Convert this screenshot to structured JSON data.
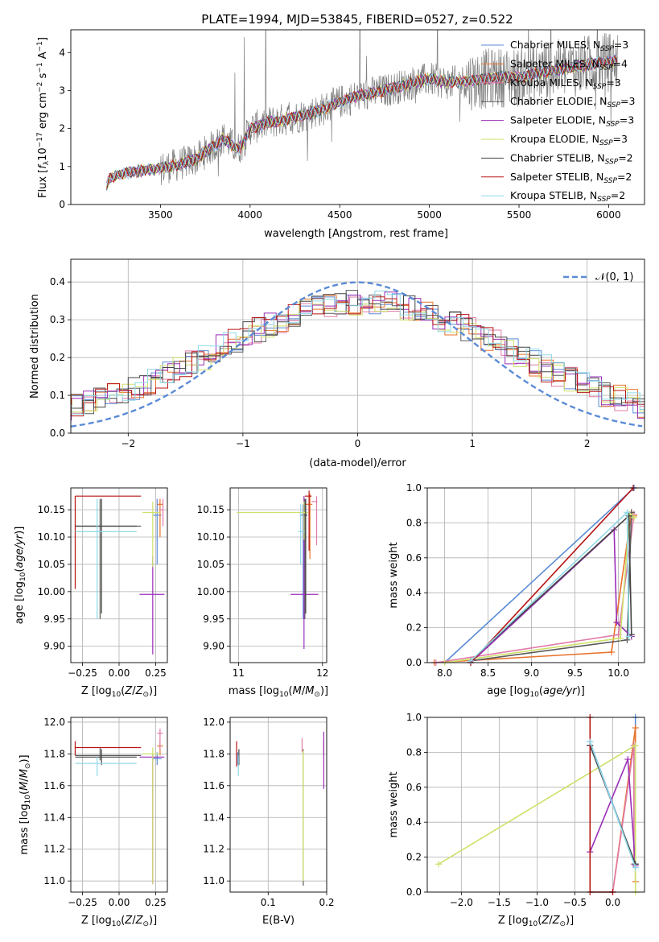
{
  "figure": {
    "title": "PLATE=1994, MJD=53845, FIBERID=0527, z=0.522"
  },
  "colors": {
    "Chabrier MILES": "#5b8bd6",
    "Salpeter MILES": "#e8722a",
    "Kroupa MILES": "#e07ba8",
    "Chabrier ELODIE": "#5a5a5a",
    "Salpeter ELODIE": "#9a2fb8",
    "Kroupa ELODIE": "#cfe06a",
    "Chabrier STELIB": "#444444",
    "Salpeter STELIB": "#b81414",
    "Kroupa STELIB": "#8fd8e8",
    "data": "#7f7f7f",
    "normal": "#5b8bd6"
  },
  "chart_data": [
    {
      "id": "spectrum",
      "type": "line",
      "title": "PLATE=1994, MJD=53845, FIBERID=0527, z=0.522",
      "xlabel": "wavelength [Angstrom, rest frame]",
      "ylabel": "Flux [f_λ 10^-17 erg cm^-2 s^-1 A^-1]",
      "xlim": [
        3000,
        6200
      ],
      "ylim": [
        0,
        4.6
      ],
      "xticks": [
        3500,
        4000,
        4500,
        5000,
        5500,
        6000
      ],
      "yticks": [
        0,
        1,
        2,
        3,
        4
      ],
      "grid": false,
      "legend_position": "top-right",
      "legend": [
        {
          "model": "Chabrier MILES",
          "n": "3"
        },
        {
          "model": "Salpeter MILES",
          "n": "4"
        },
        {
          "model": "Kroupa MILES",
          "n": "3"
        },
        {
          "model": "Chabrier ELODIE",
          "n": "3"
        },
        {
          "model": "Salpeter ELODIE",
          "n": "3"
        },
        {
          "model": "Kroupa ELODIE",
          "n": "3"
        },
        {
          "model": "Chabrier STELIB",
          "n": "2"
        },
        {
          "model": "Salpeter STELIB",
          "n": "2"
        },
        {
          "model": "Kroupa STELIB",
          "n": "2"
        }
      ],
      "continuum_points": [
        [
          3200,
          0.5
        ],
        [
          3220,
          0.7
        ],
        [
          3300,
          0.82
        ],
        [
          3400,
          0.9
        ],
        [
          3500,
          0.95
        ],
        [
          3600,
          1.05
        ],
        [
          3700,
          1.2
        ],
        [
          3800,
          1.55
        ],
        [
          3850,
          1.75
        ],
        [
          3930,
          1.45
        ],
        [
          3960,
          1.6
        ],
        [
          4000,
          2.0
        ],
        [
          4100,
          2.15
        ],
        [
          4200,
          2.25
        ],
        [
          4300,
          2.35
        ],
        [
          4400,
          2.5
        ],
        [
          4500,
          2.7
        ],
        [
          4600,
          2.85
        ],
        [
          4700,
          2.95
        ],
        [
          4800,
          3.05
        ],
        [
          4900,
          3.2
        ],
        [
          5000,
          3.3
        ],
        [
          5100,
          3.2
        ],
        [
          5200,
          3.25
        ],
        [
          5300,
          3.3
        ],
        [
          5400,
          3.35
        ],
        [
          5500,
          3.35
        ],
        [
          5600,
          3.45
        ],
        [
          5700,
          3.55
        ],
        [
          5800,
          3.6
        ],
        [
          5900,
          3.7
        ],
        [
          6000,
          3.75
        ],
        [
          6050,
          3.8
        ]
      ]
    },
    {
      "id": "residuals",
      "type": "line",
      "xlabel": "(data-model)/error",
      "ylabel": "Normed distribution",
      "xlim": [
        -2.5,
        2.5
      ],
      "ylim": [
        0,
        0.46
      ],
      "xticks": [
        -2,
        -1,
        0,
        1,
        2
      ],
      "yticks": [
        0.0,
        0.1,
        0.2,
        0.3,
        0.4
      ],
      "grid": true,
      "legend_position": "top-right",
      "legend_label": "𝒩(0, 1)",
      "normal": {
        "mean": 0,
        "sigma": 1
      }
    },
    {
      "id": "age_vs_Z",
      "type": "scatter",
      "xlabel": "Z [log10(Z/Z⊙)]",
      "ylabel": "age  [log10(age/yr)]",
      "xlim": [
        -0.33,
        0.33
      ],
      "ylim": [
        9.87,
        10.19
      ],
      "xticks": [
        -0.25,
        0.0,
        0.25
      ],
      "yticks": [
        9.9,
        9.95,
        10.0,
        10.05,
        10.1,
        10.15
      ],
      "grid": true,
      "points": [
        {
          "model": "Chabrier MILES",
          "x": 0.26,
          "y": 10.14,
          "xerr": [
            0.03,
            0.03
          ],
          "yerr": [
            0.09,
            0.03
          ]
        },
        {
          "model": "Salpeter MILES",
          "x": 0.28,
          "y": 10.16,
          "xerr": [
            0.02,
            0.02
          ],
          "yerr": [
            0.06,
            0.01
          ]
        },
        {
          "model": "Kroupa MILES",
          "x": 0.3,
          "y": 10.15,
          "xerr": [
            0.02,
            0.0
          ],
          "yerr": [
            0.03,
            0.02
          ]
        },
        {
          "model": "Chabrier ELODIE",
          "x": -0.13,
          "y": 10.12,
          "xerr": [
            0.17,
            0.28
          ],
          "yerr": [
            0.17,
            0.05
          ]
        },
        {
          "model": "Salpeter ELODIE",
          "x": 0.23,
          "y": 9.995,
          "xerr": [
            0.09,
            0.08
          ],
          "yerr": [
            0.11,
            0.07
          ]
        },
        {
          "model": "Kroupa ELODIE",
          "x": 0.23,
          "y": 10.145,
          "xerr": [
            0.07,
            0.05
          ],
          "yerr": [
            0.1,
            0.02
          ]
        },
        {
          "model": "Chabrier STELIB",
          "x": -0.12,
          "y": 10.12,
          "xerr": [
            0.18,
            0.24
          ],
          "yerr": [
            0.16,
            0.05
          ]
        },
        {
          "model": "Salpeter STELIB",
          "x": -0.3,
          "y": 10.175,
          "xerr": [
            0.0,
            0.45
          ],
          "yerr": [
            0.17,
            0.0
          ]
        },
        {
          "model": "Kroupa STELIB",
          "x": -0.15,
          "y": 10.11,
          "xerr": [
            0.15,
            0.27
          ],
          "yerr": [
            0.16,
            0.06
          ]
        }
      ]
    },
    {
      "id": "age_vs_mass",
      "type": "scatter",
      "xlabel": "mass [log10(M/M⊙)]",
      "ylabel": "",
      "xlim": [
        10.9,
        12.05
      ],
      "ylim": [
        9.87,
        10.19
      ],
      "xticks": [
        11,
        12
      ],
      "yticks": [
        9.9,
        9.95,
        10.0,
        10.05,
        10.1,
        10.15
      ],
      "grid": true,
      "points": [
        {
          "model": "Chabrier MILES",
          "x": 11.77,
          "y": 10.14,
          "xerr": [
            0.04,
            0.04
          ],
          "yerr": [
            0.19,
            0.02
          ]
        },
        {
          "model": "Salpeter MILES",
          "x": 11.85,
          "y": 10.16,
          "xerr": [
            0.06,
            0.03
          ],
          "yerr": [
            0.1,
            0.02
          ]
        },
        {
          "model": "Kroupa MILES",
          "x": 11.93,
          "y": 10.165,
          "xerr": [
            0.06,
            0.01
          ],
          "yerr": [
            0.08,
            0.01
          ]
        },
        {
          "model": "Chabrier ELODIE",
          "x": 11.79,
          "y": 10.14,
          "xerr": [
            0.02,
            0.02
          ],
          "yerr": [
            0.19,
            0.03
          ]
        },
        {
          "model": "Salpeter ELODIE",
          "x": 11.78,
          "y": 9.995,
          "xerr": [
            0.16,
            0.17
          ],
          "yerr": [
            0.1,
            0.18
          ]
        },
        {
          "model": "Kroupa ELODIE",
          "x": 11.78,
          "y": 10.145,
          "xerr": [
            0.8,
            0.05
          ],
          "yerr": [
            0.05,
            0.02
          ]
        },
        {
          "model": "Chabrier STELIB",
          "x": 11.8,
          "y": 10.14,
          "xerr": [
            0.02,
            0.02
          ],
          "yerr": [
            0.18,
            0.03
          ]
        },
        {
          "model": "Salpeter STELIB",
          "x": 11.84,
          "y": 10.175,
          "xerr": [
            0.05,
            0.03
          ],
          "yerr": [
            0.1,
            0.01
          ]
        },
        {
          "model": "Kroupa STELIB",
          "x": 11.74,
          "y": 10.11,
          "xerr": [
            0.03,
            0.05
          ],
          "yerr": [
            0.06,
            0.05
          ]
        }
      ]
    },
    {
      "id": "mass_weight_vs_age",
      "type": "line",
      "xlabel": "age  [log10(age/yr)]",
      "ylabel": "mass weight",
      "xlim": [
        7.8,
        10.3
      ],
      "ylim": [
        0,
        1
      ],
      "xticks": [
        8.0,
        8.5,
        9.0,
        9.5,
        10.0
      ],
      "yticks": [
        0.0,
        0.2,
        0.4,
        0.6,
        0.8,
        1.0
      ],
      "grid": true,
      "series": [
        {
          "model": "Chabrier MILES",
          "x": [
            8.0,
            10.18
          ],
          "y": [
            0.0,
            1.0
          ]
        },
        {
          "model": "Salpeter MILES",
          "x": [
            7.88,
            9.92,
            10.15,
            10.18
          ],
          "y": [
            0.0,
            0.06,
            0.86,
            0.84
          ]
        },
        {
          "model": "Kroupa MILES",
          "x": [
            7.9,
            10.0,
            10.18,
            10.15
          ],
          "y": [
            0.0,
            0.16,
            0.85,
            0.82
          ]
        },
        {
          "model": "Chabrier ELODIE",
          "x": [
            8.3,
            10.1,
            10.15
          ],
          "y": [
            0.01,
            0.13,
            0.86
          ]
        },
        {
          "model": "Salpeter ELODIE",
          "x": [
            8.3,
            9.95,
            9.98,
            10.15
          ],
          "y": [
            0.0,
            0.76,
            0.23,
            0.15
          ]
        },
        {
          "model": "Kroupa ELODIE",
          "x": [
            8.0,
            10.02,
            10.13,
            10.18
          ],
          "y": [
            0.0,
            0.14,
            0.85,
            0.83
          ]
        },
        {
          "model": "Chabrier STELIB",
          "x": [
            8.3,
            10.12,
            10.15
          ],
          "y": [
            0.01,
            0.84,
            0.16
          ]
        },
        {
          "model": "Salpeter STELIB",
          "x": [
            8.3,
            10.17
          ],
          "y": [
            0.0,
            1.0
          ]
        },
        {
          "model": "Kroupa STELIB",
          "x": [
            8.3,
            10.1,
            10.12
          ],
          "y": [
            0.01,
            0.86,
            0.15
          ]
        }
      ]
    },
    {
      "id": "mass_vs_Z",
      "type": "scatter",
      "xlabel": "Z [log10(Z/Z⊙)]",
      "ylabel": "mass [log10(M/M⊙)]",
      "xlim": [
        -0.33,
        0.33
      ],
      "ylim": [
        10.93,
        12.03
      ],
      "xticks": [
        -0.25,
        0.0,
        0.25
      ],
      "yticks": [
        11.0,
        11.2,
        11.4,
        11.6,
        11.8,
        12.0
      ],
      "grid": true,
      "points": [
        {
          "model": "Chabrier MILES",
          "x": 0.26,
          "y": 11.77,
          "xerr": [
            0.03,
            0.03
          ],
          "yerr": [
            0.04,
            0.04
          ]
        },
        {
          "model": "Salpeter MILES",
          "x": 0.28,
          "y": 11.85,
          "xerr": [
            0.02,
            0.02
          ],
          "yerr": [
            0.06,
            0.03
          ]
        },
        {
          "model": "Kroupa MILES",
          "x": 0.28,
          "y": 11.93,
          "xerr": [
            0.02,
            0.02
          ],
          "yerr": [
            0.1,
            0.03
          ]
        },
        {
          "model": "Chabrier ELODIE",
          "x": -0.13,
          "y": 11.79,
          "xerr": [
            0.17,
            0.28
          ],
          "yerr": [
            0.03,
            0.05
          ]
        },
        {
          "model": "Salpeter ELODIE",
          "x": 0.23,
          "y": 11.78,
          "xerr": [
            0.09,
            0.08
          ],
          "yerr": [
            0.8,
            0.02
          ]
        },
        {
          "model": "Kroupa ELODIE",
          "x": 0.23,
          "y": 11.8,
          "xerr": [
            0.07,
            0.05
          ],
          "yerr": [
            0.82,
            0.04
          ]
        },
        {
          "model": "Chabrier STELIB",
          "x": -0.12,
          "y": 11.78,
          "xerr": [
            0.18,
            0.24
          ],
          "yerr": [
            0.05,
            0.05
          ]
        },
        {
          "model": "Salpeter STELIB",
          "x": -0.3,
          "y": 11.84,
          "xerr": [
            0.0,
            0.45
          ],
          "yerr": [
            0.05,
            0.04
          ]
        },
        {
          "model": "Kroupa STELIB",
          "x": -0.15,
          "y": 11.74,
          "xerr": [
            0.15,
            0.27
          ],
          "yerr": [
            0.08,
            0.04
          ]
        }
      ]
    },
    {
      "id": "mass_vs_ebv",
      "type": "scatter",
      "xlabel": "E(B-V)",
      "ylabel": "",
      "xlim": [
        0.035,
        0.2
      ],
      "ylim": [
        10.93,
        12.03
      ],
      "xticks": [
        0.1,
        0.2
      ],
      "yticks": [
        11.0,
        11.2,
        11.4,
        11.6,
        11.8,
        12.0
      ],
      "grid": true,
      "points": [
        {
          "model": "Chabrier MILES",
          "x": 0.048,
          "y": 11.77,
          "xerr": [
            0.0,
            0.0
          ],
          "yerr": [
            0.04,
            0.04
          ]
        },
        {
          "model": "Salpeter MILES",
          "x": 0.195,
          "y": 11.85,
          "xerr": [
            0.0,
            0.0
          ],
          "yerr": [
            0.06,
            0.03
          ]
        },
        {
          "model": "Kroupa MILES",
          "x": 0.158,
          "y": 11.87,
          "xerr": [
            0.0,
            0.0
          ],
          "yerr": [
            0.06,
            0.03
          ]
        },
        {
          "model": "Chabrier ELODIE",
          "x": 0.16,
          "y": 11.79,
          "xerr": [
            0.0,
            0.0
          ],
          "yerr": [
            0.82,
            0.04
          ]
        },
        {
          "model": "Salpeter ELODIE",
          "x": 0.195,
          "y": 11.78,
          "xerr": [
            0.0,
            0.0
          ],
          "yerr": [
            0.2,
            0.16
          ]
        },
        {
          "model": "Kroupa ELODIE",
          "x": 0.16,
          "y": 11.8,
          "xerr": [
            0.0,
            0.0
          ],
          "yerr": [
            0.8,
            0.02
          ]
        },
        {
          "model": "Chabrier STELIB",
          "x": 0.05,
          "y": 11.78,
          "xerr": [
            0.0,
            0.0
          ],
          "yerr": [
            0.05,
            0.05
          ]
        },
        {
          "model": "Salpeter STELIB",
          "x": 0.046,
          "y": 11.84,
          "xerr": [
            0.0,
            0.0
          ],
          "yerr": [
            0.12,
            0.04
          ]
        },
        {
          "model": "Kroupa STELIB",
          "x": 0.049,
          "y": 11.74,
          "xerr": [
            0.0,
            0.0
          ],
          "yerr": [
            0.08,
            0.05
          ]
        }
      ]
    },
    {
      "id": "mass_weight_vs_Z",
      "type": "line",
      "xlabel": "Z [log10(Z/Z⊙)]",
      "ylabel": "mass weight",
      "xlim": [
        -2.45,
        0.42
      ],
      "ylim": [
        0,
        1
      ],
      "xticks": [
        -2.0,
        -1.5,
        -1.0,
        -0.5,
        0.0
      ],
      "yticks": [
        0.0,
        0.2,
        0.4,
        0.6,
        0.8,
        1.0
      ],
      "grid": true,
      "series": [
        {
          "model": "Chabrier MILES",
          "x": [
            -0.3,
            0.3,
            0.3
          ],
          "y": [
            0.86,
            0.15,
            1.0
          ]
        },
        {
          "model": "Salpeter MILES",
          "x": [
            0.0,
            0.3,
            0.3
          ],
          "y": [
            0.0,
            0.94,
            0.06
          ]
        },
        {
          "model": "Kroupa MILES",
          "x": [
            0.0,
            0.28,
            0.28
          ],
          "y": [
            0.0,
            0.84,
            0.16
          ]
        },
        {
          "model": "Chabrier ELODIE",
          "x": [
            -0.3,
            0.3
          ],
          "y": [
            0.84,
            0.16
          ]
        },
        {
          "model": "Salpeter ELODIE",
          "x": [
            -0.3,
            0.2,
            0.3
          ],
          "y": [
            0.23,
            0.76,
            0.15
          ]
        },
        {
          "model": "Kroupa ELODIE",
          "x": [
            -2.3,
            0.3,
            0.3
          ],
          "y": [
            0.16,
            0.84,
            0.0
          ]
        },
        {
          "model": "Chabrier STELIB",
          "x": [
            -0.3,
            0.3
          ],
          "y": [
            0.84,
            0.16
          ]
        },
        {
          "model": "Salpeter STELIB",
          "x": [
            -0.3,
            -0.3,
            0.0
          ],
          "y": [
            1.0,
            0.0,
            0.0
          ]
        },
        {
          "model": "Kroupa STELIB",
          "x": [
            -0.3,
            0.3
          ],
          "y": [
            0.86,
            0.14
          ]
        }
      ]
    }
  ]
}
